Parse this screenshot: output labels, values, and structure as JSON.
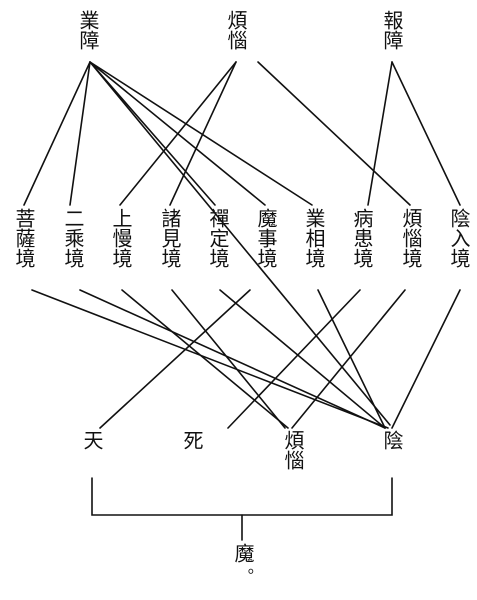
{
  "top": {
    "karma": "業障",
    "klesha": "煩惱",
    "retribution": "報障"
  },
  "middle": [
    {
      "id": "bodhisattva",
      "label": "菩薩境"
    },
    {
      "id": "two-vehicles",
      "label": "二乘境"
    },
    {
      "id": "arrogance",
      "label": "上慢境"
    },
    {
      "id": "views",
      "label": "諸見境"
    },
    {
      "id": "dhyana",
      "label": "禪定境"
    },
    {
      "id": "mara-affairs",
      "label": "魔事境"
    },
    {
      "id": "karma-signs",
      "label": "業相境"
    },
    {
      "id": "illness",
      "label": "病患境"
    },
    {
      "id": "affliction",
      "label": "煩惱境"
    },
    {
      "id": "aggregates",
      "label": "陰入境"
    }
  ],
  "bottom": {
    "deva": "天",
    "death": "死",
    "klesha": "煩惱",
    "skandha": "陰"
  },
  "result": "魔",
  "end_mark": "。"
}
